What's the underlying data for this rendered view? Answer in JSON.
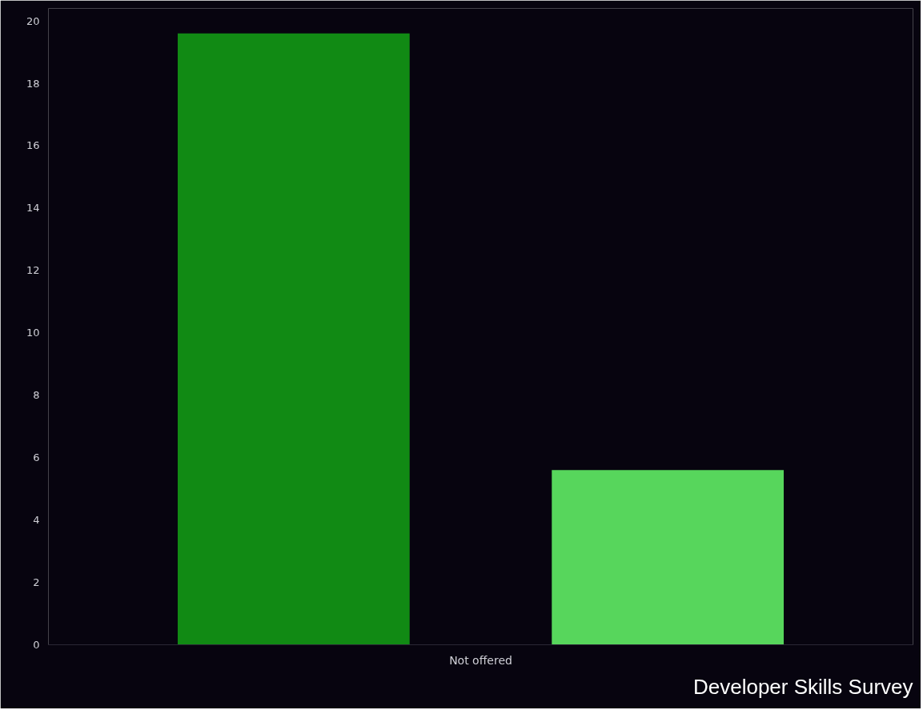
{
  "chart_data": {
    "type": "bar",
    "categories": [
      "Not offered"
    ],
    "series": [
      {
        "color": "#118a14",
        "values": [
          19.6
        ]
      },
      {
        "color": "#57d65c",
        "values": [
          5.6
        ]
      }
    ],
    "ylim": [
      0,
      20.4
    ],
    "yticks": [
      0,
      2,
      4,
      6,
      8,
      10,
      12,
      14,
      16,
      18,
      20
    ],
    "grid": false,
    "annotations": [
      "Developer Skills Survey"
    ]
  }
}
